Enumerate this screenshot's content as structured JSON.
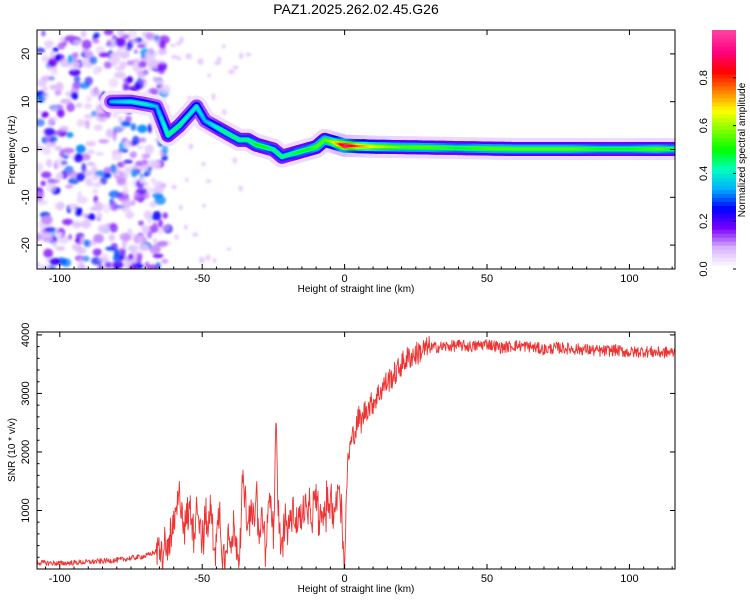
{
  "page": {
    "title": "PAZ1.2025.262.02.45.G26"
  },
  "chart_data": [
    {
      "type": "heatmap",
      "name": "spectrogram",
      "xlabel": "Height of straight line (km)",
      "ylabel": "Frequency (Hz)",
      "xlim": [
        -108,
        116
      ],
      "ylim": [
        -25,
        25
      ],
      "xticks": [
        -100,
        -50,
        0,
        50,
        100
      ],
      "yticks": [
        -20,
        -10,
        0,
        10,
        20
      ],
      "colorbar": {
        "label": "Normalized spectral amplitude",
        "range": [
          0,
          1
        ],
        "ticks": [
          0.0,
          0.2,
          0.4,
          0.6,
          0.8
        ],
        "tick_labels": [
          "0.0",
          "0.2",
          "0.4",
          "0.6",
          "0.8"
        ],
        "colormap": [
          "#ffffff",
          "#d9b3ff",
          "#7a00ff",
          "#0000ff",
          "#00b0ff",
          "#00ffc0",
          "#00ff00",
          "#80ff00",
          "#ffff00",
          "#ff8000",
          "#ff0000",
          "#ff0080",
          "#ff3fa0"
        ]
      },
      "ridge": {
        "x": [
          -82,
          -75,
          -70,
          -66,
          -62,
          -58,
          -55,
          -52,
          -49,
          -46,
          -43,
          -40,
          -37,
          -34,
          -31,
          -28,
          -25,
          -22,
          -19,
          -16,
          -13,
          -10,
          -7,
          -4,
          0,
          5,
          10,
          20,
          30,
          40,
          50,
          60,
          70,
          80,
          90,
          100,
          110,
          116
        ],
        "y": [
          10,
          10,
          9.5,
          9,
          3,
          5,
          7,
          9,
          6,
          5,
          4,
          3,
          2,
          2,
          1,
          0.5,
          0,
          -1.5,
          -1,
          -0.5,
          0,
          0.5,
          2,
          1.5,
          0.8,
          0.7,
          0.6,
          0.5,
          0.4,
          0.3,
          0.2,
          0.1,
          0.1,
          0.1,
          0.1,
          0.1,
          0.1,
          0.1
        ],
        "amplitude": [
          0.35,
          0.4,
          0.4,
          0.35,
          0.45,
          0.45,
          0.4,
          0.4,
          0.35,
          0.4,
          0.45,
          0.45,
          0.45,
          0.45,
          0.5,
          0.5,
          0.45,
          0.45,
          0.45,
          0.5,
          0.5,
          0.55,
          0.55,
          0.65,
          0.95,
          0.75,
          0.65,
          0.55,
          0.55,
          0.5,
          0.55,
          0.55,
          0.55,
          0.55,
          0.5,
          0.5,
          0.55,
          0.5
        ]
      },
      "noise_region_x": [
        -108,
        -62
      ]
    },
    {
      "type": "line",
      "name": "snr",
      "xlabel": "Height of straight line (km)",
      "ylabel": "SNR (10 * v/v)",
      "xlim": [
        -108,
        116
      ],
      "ylim": [
        0,
        4050
      ],
      "xticks": [
        -100,
        -50,
        0,
        50,
        100
      ],
      "yticks": [
        1000,
        2000,
        3000,
        4000
      ],
      "color": "#ee3333",
      "series": [
        {
          "x": [
            -108,
            -100,
            -90,
            -80,
            -70,
            -66,
            -64,
            -62,
            -60,
            -59,
            -58,
            -57,
            -56,
            -55,
            -54,
            -53,
            -52,
            -51,
            -50,
            -49,
            -48,
            -47,
            -46,
            -45,
            -44,
            -43,
            -42,
            -41,
            -40,
            -39,
            -38,
            -37,
            -36,
            -35,
            -34,
            -33,
            -32,
            -31,
            -30,
            -29,
            -28,
            -27,
            -26,
            -25,
            -24,
            -23,
            -22,
            -21,
            -20,
            -19,
            -18,
            -17,
            -16,
            -15,
            -14,
            -13,
            -12,
            -11,
            -10,
            -9,
            -8,
            -7,
            -6,
            -5,
            -4,
            -3,
            -2,
            -1,
            0,
            1,
            2,
            3,
            4,
            5,
            6,
            7,
            8,
            9,
            10,
            12,
            14,
            16,
            18,
            20,
            22,
            24,
            26,
            28,
            30,
            35,
            40,
            45,
            50,
            55,
            60,
            65,
            70,
            75,
            80,
            85,
            90,
            95,
            100,
            105,
            110,
            116
          ],
          "y": [
            110,
            95,
            120,
            150,
            220,
            300,
            250,
            400,
            650,
            1000,
            1200,
            1050,
            700,
            900,
            1050,
            600,
            1100,
            1000,
            450,
            800,
            700,
            1000,
            550,
            400,
            1050,
            350,
            300,
            700,
            300,
            650,
            500,
            200,
            1400,
            1200,
            600,
            1000,
            700,
            1300,
            400,
            1000,
            350,
            700,
            1500,
            600,
            2600,
            500,
            400,
            800,
            700,
            850,
            1000,
            750,
            900,
            800,
            1100,
            850,
            950,
            1000,
            1200,
            900,
            800,
            1000,
            1100,
            1200,
            1000,
            1100,
            1500,
            900,
            50,
            1800,
            2100,
            2300,
            2400,
            2600,
            2500,
            2700,
            2750,
            2800,
            2850,
            3000,
            3150,
            3250,
            3350,
            3500,
            3600,
            3650,
            3700,
            3750,
            3780,
            3800,
            3820,
            3800,
            3850,
            3780,
            3820,
            3800,
            3750,
            3780,
            3760,
            3750,
            3720,
            3740,
            3700,
            3720,
            3700,
            3700
          ]
        }
      ]
    }
  ]
}
